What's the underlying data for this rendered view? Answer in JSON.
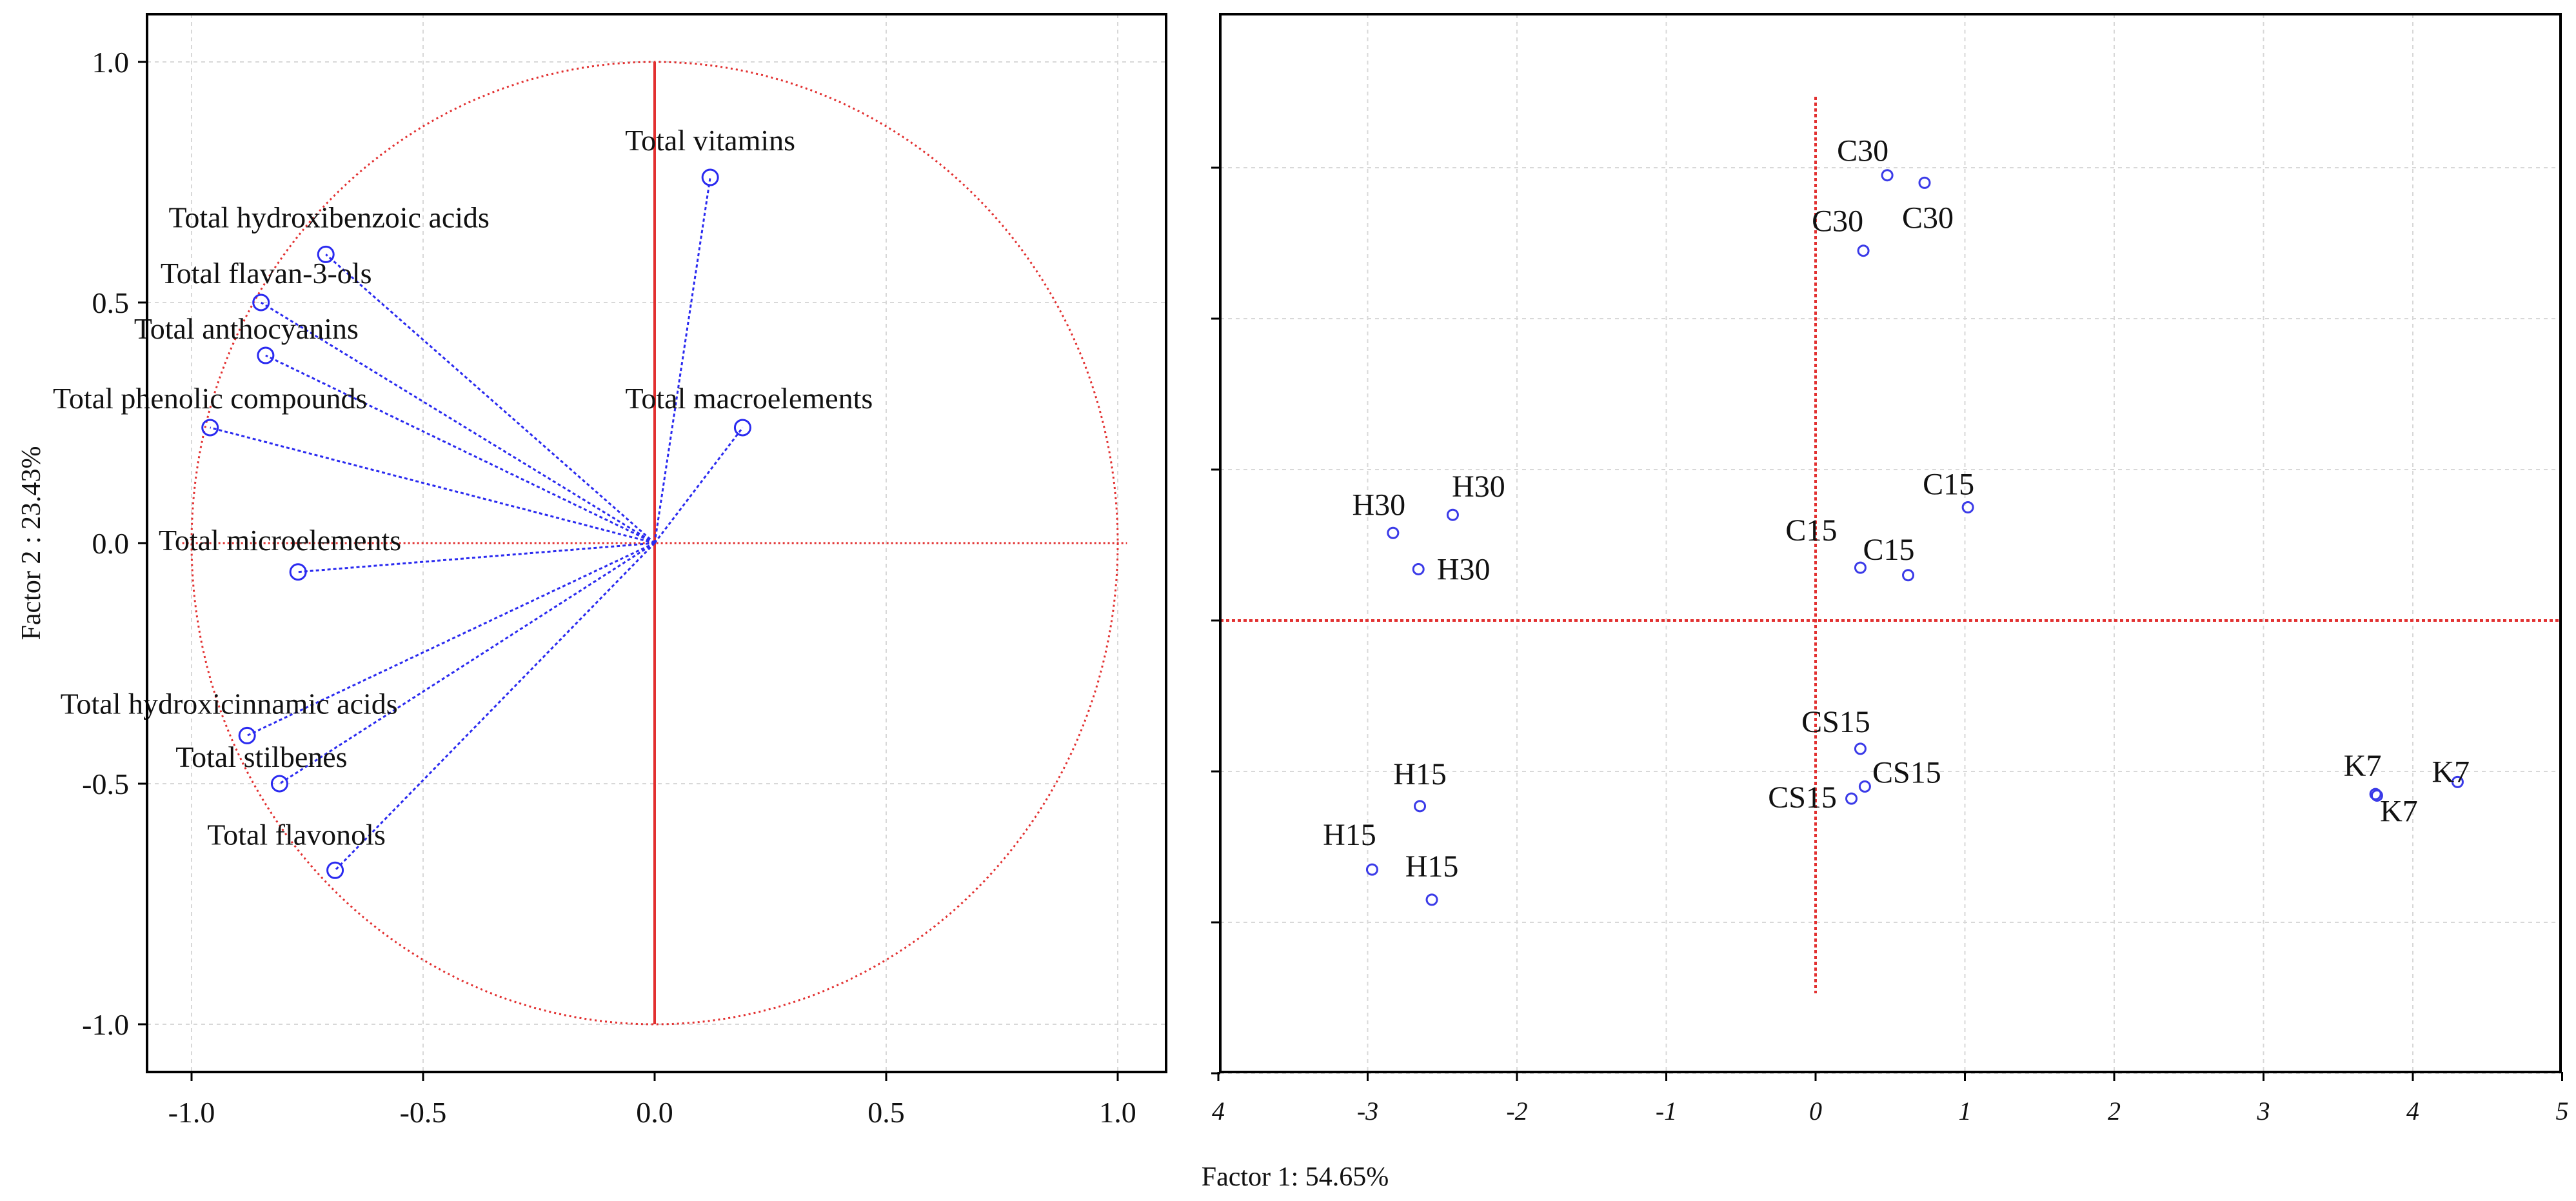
{
  "colors": {
    "loading_line": "#2a2af0",
    "circle": "#e23030",
    "axis_line": "#e23030",
    "points": "#3a3ae8",
    "grid": "#d8d8d8",
    "frame": "#000000"
  },
  "x_axis_label": "Factor 1: 54.65%",
  "chart_data": [
    {
      "type": "scatter",
      "subtype": "loading-plot",
      "title": "",
      "xlabel": "Factor 1: 54.65%",
      "ylabel": "Factor 2 : 23.43%",
      "xlim": [
        -1.1,
        1.1
      ],
      "ylim": [
        -1.1,
        1.1
      ],
      "x_ticks": [
        "-1.0",
        "-0.5",
        "0.0",
        "0.5",
        "1.0"
      ],
      "y_ticks": [
        "1.0",
        "0.5",
        "0.0",
        "-0.5",
        "-1.0"
      ],
      "grid": true,
      "unit_circle": true,
      "variables": [
        {
          "name": "Total vitamins",
          "x": 0.12,
          "y": 0.76
        },
        {
          "name": "Total hydroxibenzoic acids",
          "x": -0.71,
          "y": 0.6
        },
        {
          "name": "Total flavan-3-ols",
          "x": -0.85,
          "y": 0.5
        },
        {
          "name": "Total anthocyanins",
          "x": -0.84,
          "y": 0.39
        },
        {
          "name": "Total phenolic compounds",
          "x": -0.96,
          "y": 0.24
        },
        {
          "name": "Total macroelements",
          "x": 0.19,
          "y": 0.24
        },
        {
          "name": "Total microelements",
          "x": -0.77,
          "y": -0.06
        },
        {
          "name": "Total hydroxicinnamic acids",
          "x": -0.88,
          "y": -0.4
        },
        {
          "name": "Total stilbenes",
          "x": -0.81,
          "y": -0.5
        },
        {
          "name": "Total flavonols",
          "x": -0.69,
          "y": -0.68
        }
      ]
    },
    {
      "type": "scatter",
      "subtype": "score-plot",
      "title": "",
      "xlabel": "Factor 1: 54.65%",
      "ylabel": "",
      "xlim": [
        -4,
        5
      ],
      "ylim": [
        -3,
        3
      ],
      "x_ticks": [
        "4",
        "-3",
        "-2",
        "-1",
        "0",
        "1",
        "2",
        "3",
        "4",
        "5"
      ],
      "grid": true,
      "points": [
        {
          "label": "C30",
          "x": 0.48,
          "y": 2.95
        },
        {
          "label": "C30",
          "x": 0.73,
          "y": 2.9
        },
        {
          "label": "C30",
          "x": 0.32,
          "y": 2.45
        },
        {
          "label": "C15",
          "x": 1.02,
          "y": 0.75
        },
        {
          "label": "C15",
          "x": 0.3,
          "y": 0.35
        },
        {
          "label": "C15",
          "x": 0.62,
          "y": 0.3
        },
        {
          "label": "H30",
          "x": -2.83,
          "y": 0.58
        },
        {
          "label": "H30",
          "x": -2.43,
          "y": 0.7
        },
        {
          "label": "H30",
          "x": -2.66,
          "y": 0.34
        },
        {
          "label": "CS15",
          "x": 0.3,
          "y": -0.85
        },
        {
          "label": "CS15",
          "x": 0.33,
          "y": -1.1
        },
        {
          "label": "CS15",
          "x": 0.24,
          "y": -1.18
        },
        {
          "label": "H15",
          "x": -2.65,
          "y": -1.23
        },
        {
          "label": "H15",
          "x": -2.97,
          "y": -1.65
        },
        {
          "label": "H15",
          "x": -2.57,
          "y": -1.85
        },
        {
          "label": "K7",
          "x": 3.75,
          "y": -1.15
        },
        {
          "label": "K7",
          "x": 4.3,
          "y": -1.07
        },
        {
          "label": "K7",
          "x": 3.76,
          "y": -1.16
        }
      ]
    }
  ]
}
